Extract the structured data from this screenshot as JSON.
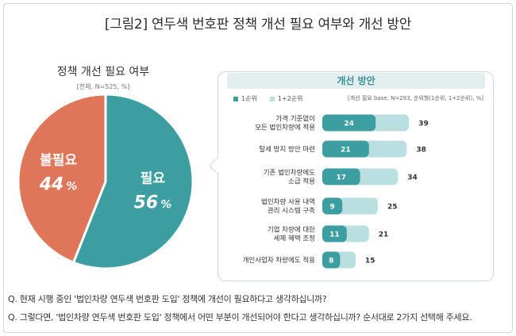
{
  "title": "[그림2] 연두색 번호판 정책 개선 필요 여부와 개선 방안",
  "pie": {
    "title": "정책 개선 필요 여부",
    "note": "[전체, N=525, %]"
  },
  "bar_panel": {
    "title": "개선 방안",
    "legend": [
      "1순위",
      "1+2순위"
    ],
    "basis": "[개선 필요 base, N=293, 순위형(1순위, 1+2순위), %]"
  },
  "questions": [
    "Q. 현재 시행 중인 '법인차량 연두색 번호판 도입' 정책에 개선이 필요하다고 생각하십니까?",
    "Q. 그렇다면, '법인차량 연두색 번호판 도입' 정책에서 어떤 부분이 개선되어야 한다고 생각하십니까? 순서대로 2가지 선택해 주세요."
  ],
  "colors": {
    "teal": "#3d9ea1",
    "orange": "#e07659",
    "light_teal": "#b9dfe0"
  },
  "chart_data": [
    {
      "type": "pie",
      "title": "정책 개선 필요 여부",
      "slices": [
        {
          "label": "필요",
          "value": 56,
          "value_label": "56",
          "unit": "%",
          "color": "#3d9ea1"
        },
        {
          "label": "불필요",
          "value": 44,
          "value_label": "44",
          "unit": "%",
          "color": "#e07659"
        }
      ]
    },
    {
      "type": "bar",
      "title": "개선 방안",
      "categories": [
        [
          "가격 기준없이",
          "모든 법인차량에 적용"
        ],
        [
          "탈세 방지 방안 마련"
        ],
        [
          "기존 법인차량에도",
          "소급 적용"
        ],
        [
          "법인차량 사용 내역",
          "관리 시스템 구축"
        ],
        [
          "기업 차량에 대한",
          "세제 혜택 조정"
        ],
        [
          "개인사업자 차량에도 적용"
        ]
      ],
      "series": [
        {
          "name": "1순위",
          "values": [
            24,
            21,
            17,
            9,
            11,
            8
          ],
          "color": "#3d9ea1"
        },
        {
          "name": "1+2순위",
          "values": [
            39,
            38,
            34,
            25,
            21,
            15
          ],
          "color": "#b9dfe0"
        }
      ]
    }
  ]
}
